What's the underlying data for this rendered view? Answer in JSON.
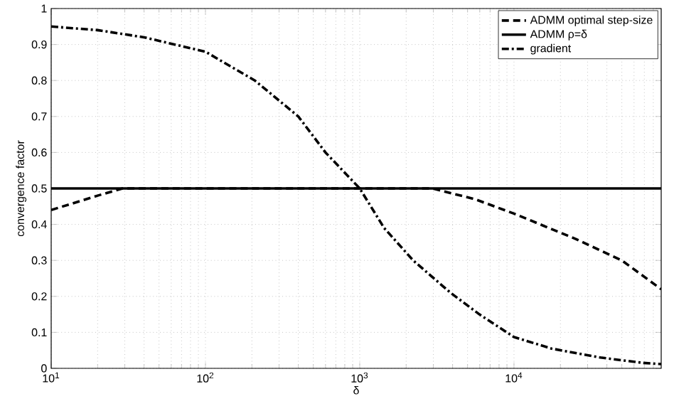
{
  "chart_data": {
    "type": "line",
    "xlabel": "δ",
    "ylabel": "convergence factor",
    "log": "x",
    "grid": true,
    "legend": "top right",
    "xlim": [
      10,
      90000
    ],
    "ylim": [
      0,
      1
    ],
    "xticks": [
      {
        "value": 10,
        "label": "10$^{1}$"
      },
      {
        "value": 100,
        "label": "10$^{2}$"
      },
      {
        "value": 1000,
        "label": "10$^{3}$"
      },
      {
        "value": 10000,
        "label": "10$^{4}$"
      }
    ],
    "yticks": [
      0,
      0.1,
      0.2,
      0.3,
      0.4,
      0.5,
      0.6,
      0.7,
      0.8,
      0.9,
      1
    ],
    "series": [
      {
        "name": "ADMM optimal step-size",
        "color": "#000000",
        "line_style": "dashed",
        "x": [
          10,
          20,
          29,
          2950,
          5600,
          10000,
          25000,
          50000,
          90000
        ],
        "values": [
          0.44,
          0.48,
          0.5,
          0.5,
          0.47,
          0.43,
          0.36,
          0.3,
          0.22
        ]
      },
      {
        "name": "ADMM ρ=δ",
        "color": "#000000",
        "line_style": "solid",
        "x": [
          10,
          90000
        ],
        "values": [
          0.5,
          0.5
        ]
      },
      {
        "name": "gradient",
        "color": "#000000",
        "line_style": "dashdot",
        "x": [
          10,
          20,
          40,
          100,
          209,
          400,
          600,
          1000,
          1440,
          2220,
          3880,
          5970,
          10000,
          17500,
          36300,
          69000,
          90000
        ],
        "values": [
          0.95,
          0.94,
          0.92,
          0.88,
          0.8,
          0.7,
          0.6,
          0.5,
          0.39,
          0.3,
          0.21,
          0.15,
          0.087,
          0.055,
          0.03,
          0.015,
          0.012
        ]
      }
    ]
  }
}
